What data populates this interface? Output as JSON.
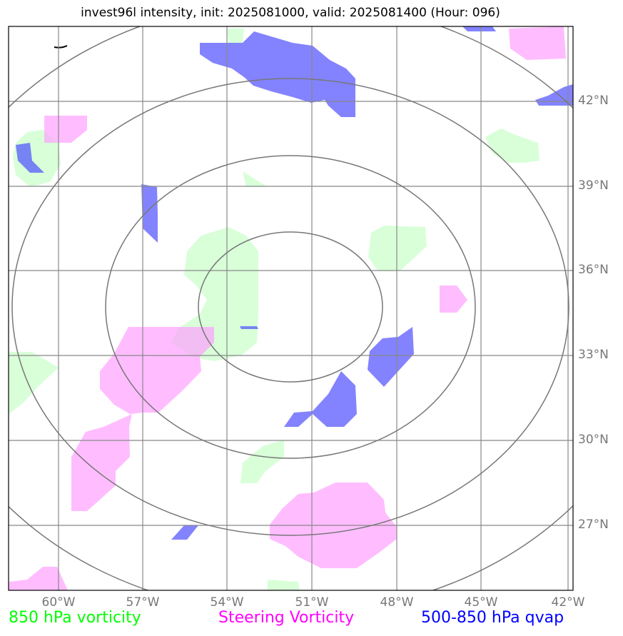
{
  "title": "invest96l intensity, init: 2025081000, valid: 2025081400 (Hour: 096)",
  "lat_labels": [
    "42°N",
    "39°N",
    "36°N",
    "33°N",
    "30°N",
    "27°N"
  ],
  "lon_labels": [
    "60°W",
    "57°W",
    "54°W",
    "51°W",
    "48°W",
    "45°W",
    "42°W"
  ],
  "legend": {
    "vorticity_850": {
      "label": "850 hPa vorticity",
      "color": "#00ff00"
    },
    "steering_vorticity": {
      "label": "Steering Vorticity",
      "color": "#ff00ff"
    },
    "qvap": {
      "label": "500-850 hPa qvap",
      "color": "#0000ff"
    }
  },
  "colors": {
    "grid": "#888888",
    "rings": "#777777",
    "vorticity_fill": "#ccffcc",
    "steering_fill": "#ff99ff",
    "qvap_fill": "#4040ff"
  }
}
